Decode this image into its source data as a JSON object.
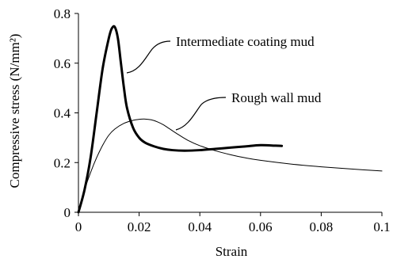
{
  "chart_data": {
    "type": "line",
    "xlabel": "Strain",
    "ylabel": "Compressive stress (N/mm²)",
    "xlim": [
      0,
      0.1
    ],
    "ylim": [
      0,
      0.8
    ],
    "x_ticks": [
      0,
      0.02,
      0.04,
      0.06,
      0.08,
      0.1
    ],
    "x_tick_labels": [
      "0",
      "0.02",
      "0.04",
      "0.06",
      "0.08",
      "0.1"
    ],
    "y_ticks": [
      0,
      0.2,
      0.4,
      0.6,
      0.8
    ],
    "y_tick_labels": [
      "0",
      "0.2",
      "0.4",
      "0.6",
      "0.8"
    ],
    "grid": false,
    "legend": "none",
    "series": [
      {
        "name": "Intermediate coating mud",
        "line_style": "thick",
        "x": [
          0,
          0.002,
          0.004,
          0.006,
          0.008,
          0.01,
          0.011,
          0.012,
          0.013,
          0.014,
          0.015,
          0.016,
          0.018,
          0.02,
          0.022,
          0.025,
          0.028,
          0.031,
          0.035,
          0.04,
          0.045,
          0.05,
          0.055,
          0.06,
          0.065,
          0.067
        ],
        "y": [
          0,
          0.09,
          0.22,
          0.4,
          0.58,
          0.7,
          0.74,
          0.745,
          0.7,
          0.6,
          0.5,
          0.42,
          0.34,
          0.3,
          0.28,
          0.265,
          0.255,
          0.25,
          0.248,
          0.25,
          0.255,
          0.26,
          0.265,
          0.27,
          0.268,
          0.267
        ]
      },
      {
        "name": "Rough wall mud",
        "line_style": "thin",
        "x": [
          0,
          0.002,
          0.004,
          0.006,
          0.008,
          0.01,
          0.012,
          0.015,
          0.018,
          0.02,
          0.022,
          0.024,
          0.026,
          0.028,
          0.03,
          0.033,
          0.036,
          0.04,
          0.045,
          0.05,
          0.055,
          0.06,
          0.07,
          0.08,
          0.09,
          0.1
        ],
        "y": [
          0,
          0.09,
          0.16,
          0.22,
          0.27,
          0.31,
          0.335,
          0.358,
          0.37,
          0.374,
          0.375,
          0.372,
          0.364,
          0.352,
          0.336,
          0.312,
          0.29,
          0.268,
          0.248,
          0.232,
          0.219,
          0.209,
          0.194,
          0.183,
          0.174,
          0.166
        ]
      }
    ],
    "annotations": [
      {
        "text": "Intermediate coating mud",
        "series": 0
      },
      {
        "text": "Rough wall mud",
        "series": 1
      }
    ]
  }
}
